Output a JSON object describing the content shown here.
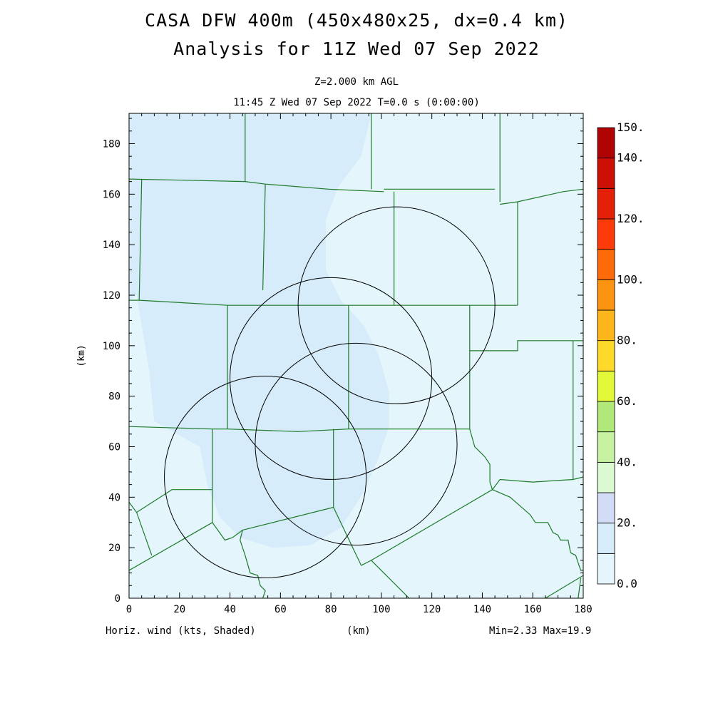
{
  "header": {
    "title_line1": "CASA DFW 400m (450x480x25, dx=0.4 km)",
    "title_line2": "Analysis for 11Z Wed 07 Sep 2022",
    "level": "Z=2.000 km AGL",
    "time": "11:45 Z Wed 07 Sep 2022   T=0.0 s (0:00:00)"
  },
  "footer": {
    "field_label": "Horiz. wind (kts, Shaded)",
    "xunit": "(km)",
    "minmax": "Min=2.33 Max=19.9"
  },
  "chart_data": {
    "type": "heatmap",
    "xlabel": "(km)",
    "ylabel": "(km)",
    "xlim": [
      0,
      180
    ],
    "ylim": [
      0,
      192
    ],
    "x_ticks": [
      0,
      20,
      40,
      60,
      80,
      100,
      120,
      140,
      160,
      180
    ],
    "y_ticks": [
      0,
      20,
      40,
      60,
      80,
      100,
      120,
      140,
      160,
      180
    ],
    "field": "Horiz. wind (kts, Shaded)",
    "min": 2.33,
    "max": 19.9,
    "colorbar": {
      "levels": [
        0,
        10,
        20,
        30,
        40,
        50,
        60,
        70,
        80,
        90,
        100,
        110,
        120,
        130,
        140,
        150
      ],
      "labels": [
        "0.0",
        "20.",
        "40.",
        "60.",
        "80.",
        "100.",
        "120.",
        "140.",
        "150."
      ],
      "label_values": [
        0,
        20,
        40,
        60,
        80,
        100,
        120,
        140,
        150
      ],
      "colors": [
        "#e4f6fc",
        "#d6ecfa",
        "#d2dcf6",
        "#dcfad2",
        "#c6f2a2",
        "#b0e87a",
        "#e4f83a",
        "#ffd92a",
        "#fcb51a",
        "#fc9412",
        "#fc6a0a",
        "#fc3a0a",
        "#e42008",
        "#cc1006",
        "#b00404"
      ]
    },
    "shaded_regions": [
      {
        "band": "0-10",
        "color": "#e4f6fc",
        "description": "background"
      },
      {
        "band": "10-20",
        "color": "#d6ecfa",
        "outline": [
          [
            0,
            192
          ],
          [
            96,
            192
          ],
          [
            92,
            175
          ],
          [
            83,
            163
          ],
          [
            78,
            150
          ],
          [
            78,
            130
          ],
          [
            84,
            118
          ],
          [
            93,
            108
          ],
          [
            99,
            96
          ],
          [
            103,
            82
          ],
          [
            103,
            68
          ],
          [
            99,
            56
          ],
          [
            93,
            42
          ],
          [
            84,
            28
          ],
          [
            72,
            21
          ],
          [
            57,
            20
          ],
          [
            44,
            24
          ],
          [
            36,
            32
          ],
          [
            31,
            45
          ],
          [
            28,
            60
          ],
          [
            10,
            70
          ],
          [
            8,
            90
          ],
          [
            3,
            120
          ],
          [
            0,
            118
          ]
        ]
      }
    ],
    "radar_rings": [
      {
        "center": [
          106,
          116
        ],
        "radius": 39
      },
      {
        "center": [
          80,
          87
        ],
        "radius": 40
      },
      {
        "center": [
          90,
          61
        ],
        "radius": 40
      },
      {
        "center": [
          54,
          48
        ],
        "radius": 40
      }
    ],
    "county_lines": [
      [
        [
          0,
          166
        ],
        [
          46,
          165
        ],
        [
          54,
          164
        ],
        [
          79,
          162
        ],
        [
          101,
          161
        ]
      ],
      [
        [
          101,
          162
        ],
        [
          145,
          162
        ]
      ],
      [
        [
          46,
          192
        ],
        [
          46,
          165
        ]
      ],
      [
        [
          96,
          192
        ],
        [
          96,
          162
        ]
      ],
      [
        [
          147,
          192
        ],
        [
          147,
          157
        ]
      ],
      [
        [
          147,
          156
        ],
        [
          154,
          157
        ],
        [
          172,
          161
        ],
        [
          180,
          162
        ]
      ],
      [
        [
          5,
          166
        ],
        [
          4,
          118
        ]
      ],
      [
        [
          54,
          164
        ],
        [
          53,
          122
        ]
      ],
      [
        [
          105,
          161
        ],
        [
          105,
          116
        ]
      ],
      [
        [
          154,
          157
        ],
        [
          154,
          116
        ]
      ],
      [
        [
          0,
          118
        ],
        [
          4,
          118
        ],
        [
          39,
          116
        ],
        [
          65,
          116
        ],
        [
          86,
          116
        ],
        [
          101,
          116
        ],
        [
          105,
          116
        ],
        [
          135,
          116
        ],
        [
          154,
          116
        ]
      ],
      [
        [
          39,
          116
        ],
        [
          39,
          67
        ]
      ],
      [
        [
          87,
          116
        ],
        [
          87,
          67
        ]
      ],
      [
        [
          135,
          116
        ],
        [
          135,
          67
        ]
      ],
      [
        [
          135,
          98
        ],
        [
          154,
          98
        ],
        [
          154,
          102
        ],
        [
          175,
          102
        ],
        [
          180,
          102
        ]
      ],
      [
        [
          176,
          102
        ],
        [
          176,
          47
        ]
      ],
      [
        [
          0,
          68
        ],
        [
          33,
          67
        ],
        [
          39,
          67
        ],
        [
          67,
          66
        ],
        [
          87,
          67
        ],
        [
          106,
          67
        ],
        [
          122,
          67
        ],
        [
          135,
          67
        ]
      ],
      [
        [
          33,
          67
        ],
        [
          33,
          30
        ]
      ],
      [
        [
          81,
          67
        ],
        [
          81,
          36
        ]
      ],
      [
        [
          0,
          38
        ],
        [
          3,
          34
        ],
        [
          9,
          17
        ]
      ],
      [
        [
          3,
          34
        ],
        [
          17,
          43
        ],
        [
          33,
          43
        ]
      ],
      [
        [
          0,
          11
        ],
        [
          33,
          30
        ],
        [
          38,
          23
        ],
        [
          41,
          24
        ],
        [
          45,
          27
        ]
      ],
      [
        [
          45,
          27
        ],
        [
          81,
          36
        ],
        [
          92,
          13
        ],
        [
          96,
          15
        ],
        [
          144,
          43
        ]
      ],
      [
        [
          135,
          67
        ],
        [
          137,
          60
        ],
        [
          141,
          56
        ],
        [
          143,
          53
        ],
        [
          143,
          46
        ],
        [
          144,
          43
        ],
        [
          147,
          47
        ],
        [
          160,
          46
        ],
        [
          176,
          47
        ],
        [
          180,
          48
        ]
      ],
      [
        [
          144,
          43
        ],
        [
          151,
          40
        ],
        [
          159,
          33
        ],
        [
          161,
          30
        ],
        [
          166,
          30
        ],
        [
          168,
          26
        ],
        [
          170,
          25
        ],
        [
          171,
          23
        ],
        [
          174,
          23
        ],
        [
          175,
          18
        ],
        [
          177,
          17
        ],
        [
          178,
          14
        ],
        [
          179,
          11
        ],
        [
          180,
          11
        ]
      ],
      [
        [
          96,
          15
        ],
        [
          111,
          0
        ]
      ],
      [
        [
          45,
          27
        ],
        [
          44,
          23
        ],
        [
          46,
          17
        ],
        [
          48,
          10
        ],
        [
          51,
          9
        ],
        [
          52,
          5
        ],
        [
          54,
          3
        ],
        [
          53,
          0
        ]
      ],
      [
        [
          165,
          0
        ],
        [
          180,
          9
        ]
      ],
      [
        [
          179,
          8
        ],
        [
          178,
          0
        ]
      ]
    ]
  }
}
